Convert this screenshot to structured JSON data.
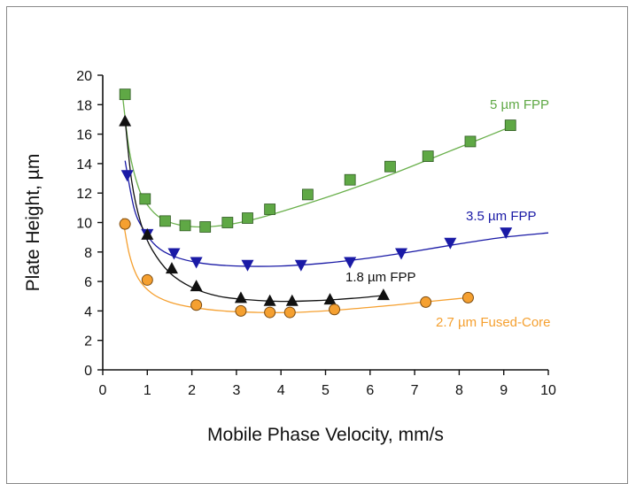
{
  "chart_data": {
    "type": "scatter",
    "title": "",
    "xlabel": "Mobile Phase Velocity, mm/s",
    "ylabel": "Plate Height, µm",
    "xlim": [
      0,
      10
    ],
    "ylim": [
      0,
      20
    ],
    "x_ticks": [
      "0",
      "1",
      "2",
      "3",
      "4",
      "5",
      "6",
      "7",
      "8",
      "9",
      "10"
    ],
    "y_ticks": [
      "0",
      "2",
      "4",
      "6",
      "8",
      "10",
      "12",
      "14",
      "16",
      "18",
      "20"
    ],
    "grid": false,
    "series": [
      {
        "name": "5 µm FPP",
        "marker": "square",
        "color": "#6ab04c",
        "marker_color": "#5fa845",
        "points": [
          [
            0.5,
            18.7
          ],
          [
            0.95,
            11.6
          ],
          [
            1.4,
            10.1
          ],
          [
            1.85,
            9.8
          ],
          [
            2.3,
            9.7
          ],
          [
            2.8,
            10.0
          ],
          [
            3.25,
            10.3
          ],
          [
            3.75,
            10.9
          ],
          [
            4.6,
            11.9
          ],
          [
            5.55,
            12.9
          ],
          [
            6.45,
            13.8
          ],
          [
            7.3,
            14.5
          ],
          [
            8.25,
            15.5
          ],
          [
            9.15,
            16.6
          ]
        ],
        "fit": [
          [
            0.45,
            18.5
          ],
          [
            0.6,
            14.8
          ],
          [
            0.8,
            12.4
          ],
          [
            1.0,
            11.2
          ],
          [
            1.3,
            10.3
          ],
          [
            1.7,
            9.85
          ],
          [
            2.2,
            9.7
          ],
          [
            2.8,
            9.85
          ],
          [
            3.5,
            10.3
          ],
          [
            4.5,
            11.2
          ],
          [
            5.5,
            12.2
          ],
          [
            6.5,
            13.3
          ],
          [
            7.5,
            14.5
          ],
          [
            8.5,
            15.7
          ],
          [
            9.2,
            16.55
          ]
        ]
      },
      {
        "name": "3.5 µm FPP",
        "marker": "triangle-down",
        "color": "#1a1aa6",
        "marker_color": "#1a1aa6",
        "points": [
          [
            0.55,
            13.2
          ],
          [
            1.0,
            9.2
          ],
          [
            1.6,
            7.9
          ],
          [
            2.1,
            7.3
          ],
          [
            3.25,
            7.1
          ],
          [
            4.45,
            7.1
          ],
          [
            5.55,
            7.3
          ],
          [
            6.7,
            7.9
          ],
          [
            7.8,
            8.6
          ],
          [
            9.05,
            9.3
          ]
        ],
        "fit": [
          [
            0.5,
            14.2
          ],
          [
            0.7,
            11.0
          ],
          [
            0.9,
            9.6
          ],
          [
            1.2,
            8.4
          ],
          [
            1.6,
            7.7
          ],
          [
            2.2,
            7.25
          ],
          [
            3.0,
            7.05
          ],
          [
            4.0,
            7.05
          ],
          [
            5.0,
            7.25
          ],
          [
            6.0,
            7.6
          ],
          [
            7.0,
            8.05
          ],
          [
            8.0,
            8.55
          ],
          [
            9.0,
            9.0
          ],
          [
            10.0,
            9.3
          ]
        ]
      },
      {
        "name": "1.8 µm FPP",
        "marker": "triangle-up",
        "color": "#111111",
        "marker_color": "#111111",
        "points": [
          [
            0.5,
            16.9
          ],
          [
            1.0,
            9.2
          ],
          [
            1.55,
            6.9
          ],
          [
            2.1,
            5.7
          ],
          [
            3.1,
            4.9
          ],
          [
            3.75,
            4.7
          ],
          [
            4.25,
            4.7
          ],
          [
            5.1,
            4.8
          ],
          [
            6.3,
            5.1
          ]
        ],
        "fit": [
          [
            0.5,
            17.0
          ],
          [
            0.65,
            12.8
          ],
          [
            0.85,
            10.0
          ],
          [
            1.1,
            8.2
          ],
          [
            1.5,
            6.6
          ],
          [
            2.0,
            5.6
          ],
          [
            2.6,
            5.0
          ],
          [
            3.3,
            4.75
          ],
          [
            4.0,
            4.65
          ],
          [
            4.8,
            4.7
          ],
          [
            5.6,
            4.85
          ],
          [
            6.3,
            5.05
          ]
        ]
      },
      {
        "name": "2.7 µm Fused-Core",
        "marker": "circle",
        "color": "#f5a030",
        "marker_color": "#f5a030",
        "points": [
          [
            0.5,
            9.9
          ],
          [
            1.0,
            6.1
          ],
          [
            2.1,
            4.4
          ],
          [
            3.1,
            4.0
          ],
          [
            3.75,
            3.9
          ],
          [
            4.2,
            3.9
          ],
          [
            5.2,
            4.1
          ],
          [
            7.25,
            4.6
          ],
          [
            8.2,
            4.9
          ]
        ],
        "fit": [
          [
            0.45,
            10.3
          ],
          [
            0.6,
            7.8
          ],
          [
            0.8,
            6.2
          ],
          [
            1.1,
            5.2
          ],
          [
            1.5,
            4.6
          ],
          [
            2.0,
            4.25
          ],
          [
            2.7,
            4.0
          ],
          [
            3.5,
            3.9
          ],
          [
            4.3,
            3.9
          ],
          [
            5.2,
            4.05
          ],
          [
            6.2,
            4.3
          ],
          [
            7.2,
            4.6
          ],
          [
            8.2,
            4.9
          ]
        ]
      }
    ]
  }
}
